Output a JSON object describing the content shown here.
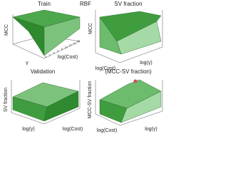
{
  "title": "RBF",
  "panels": [
    {
      "title": "Train",
      "ylabel": "MCC",
      "xlabel": "log(Cost)",
      "zlabel": "γ",
      "xticks": [
        "0",
        "2",
        "4",
        "6",
        "8",
        "10",
        "12",
        "14",
        "16"
      ]
    },
    {
      "title": "SV fraction",
      "ylabel": "MCC",
      "xlabel": "log(Cost)",
      "zlabel": "log(γ)"
    },
    {
      "title": "Validation",
      "ylabel": "SV fraction",
      "xlabel": "log(Cost)",
      "zlabel": "log(γ)"
    },
    {
      "title": "(MCC-SV fraction)",
      "ylabel": "MCC-SV fraction",
      "xlabel": "log(Cost)",
      "zlabel": "log(γ)"
    }
  ]
}
